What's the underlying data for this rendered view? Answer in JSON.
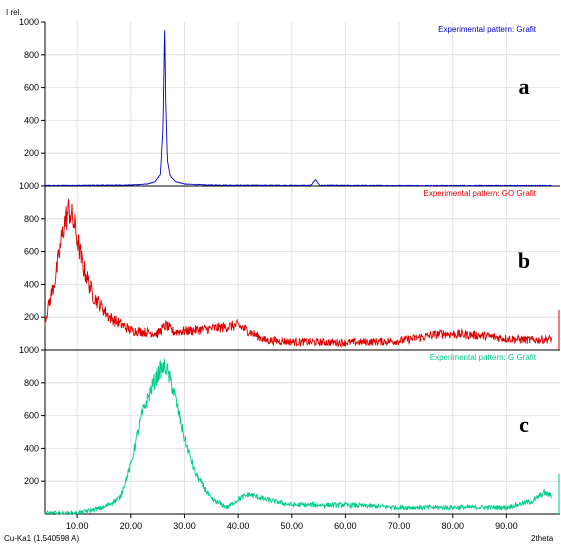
{
  "ylabel": "I rel.",
  "xlabel": "2theta",
  "footer_left": "Cu-Ka1 (1.540598 A)",
  "chart_data": {
    "type": "line",
    "x_ticks": [
      "10.00",
      "20.00",
      "30.00",
      "40.00",
      "50.00",
      "60.00",
      "70.00",
      "80.00",
      "90.00"
    ],
    "x_tick_values": [
      10,
      20,
      30,
      40,
      50,
      60,
      70,
      80,
      90
    ],
    "xlim": [
      4,
      100
    ],
    "ylim": [
      0,
      1000
    ],
    "y_ticks": [
      "1000",
      "800",
      "600",
      "400",
      "200"
    ],
    "y_tick_values": [
      1000,
      800,
      600,
      400,
      200
    ],
    "grid": true,
    "panels": [
      {
        "letter": "a",
        "legend": "Experimental pattern: Grafit",
        "color": "#0000cc",
        "kind": "graphite",
        "x": [
          4,
          10,
          20,
          23,
          24.5,
          25.5,
          26.0,
          26.3,
          26.5,
          26.8,
          27.3,
          28.3,
          30,
          34,
          40,
          50,
          53.6,
          54.4,
          55.2,
          58,
          70,
          98
        ],
        "y": [
          3,
          4,
          6,
          12,
          25,
          70,
          350,
          1000,
          520,
          160,
          65,
          28,
          12,
          6,
          5,
          4,
          4,
          40,
          4,
          4,
          3,
          3
        ]
      },
      {
        "letter": "b",
        "legend": "Experimental pattern: GO Grafit",
        "color": "#dd0000",
        "kind": "go",
        "x": [
          4,
          6,
          7.5,
          8.5,
          9.5,
          11,
          13,
          16,
          20,
          25,
          26.5,
          28,
          35,
          40,
          45,
          50,
          60,
          70,
          78,
          85,
          90,
          95,
          99
        ],
        "y": [
          180,
          450,
          760,
          860,
          760,
          520,
          330,
          200,
          120,
          100,
          150,
          110,
          130,
          150,
          60,
          50,
          45,
          55,
          100,
          90,
          70,
          60,
          70
        ]
      },
      {
        "letter": "c",
        "legend": "Experimental pattern: G Grafit",
        "color": "#00cc88",
        "kind": "g",
        "x": [
          4,
          10,
          15,
          18,
          20,
          22,
          24,
          25.5,
          26.5,
          28,
          30,
          32,
          35,
          38,
          40,
          42,
          45,
          50,
          60,
          70,
          80,
          90,
          95,
          97,
          98.5
        ],
        "y": [
          5,
          5,
          40,
          100,
          300,
          600,
          780,
          880,
          900,
          750,
          460,
          250,
          90,
          40,
          90,
          120,
          90,
          55,
          55,
          40,
          40,
          40,
          80,
          130,
          110
        ]
      }
    ]
  }
}
